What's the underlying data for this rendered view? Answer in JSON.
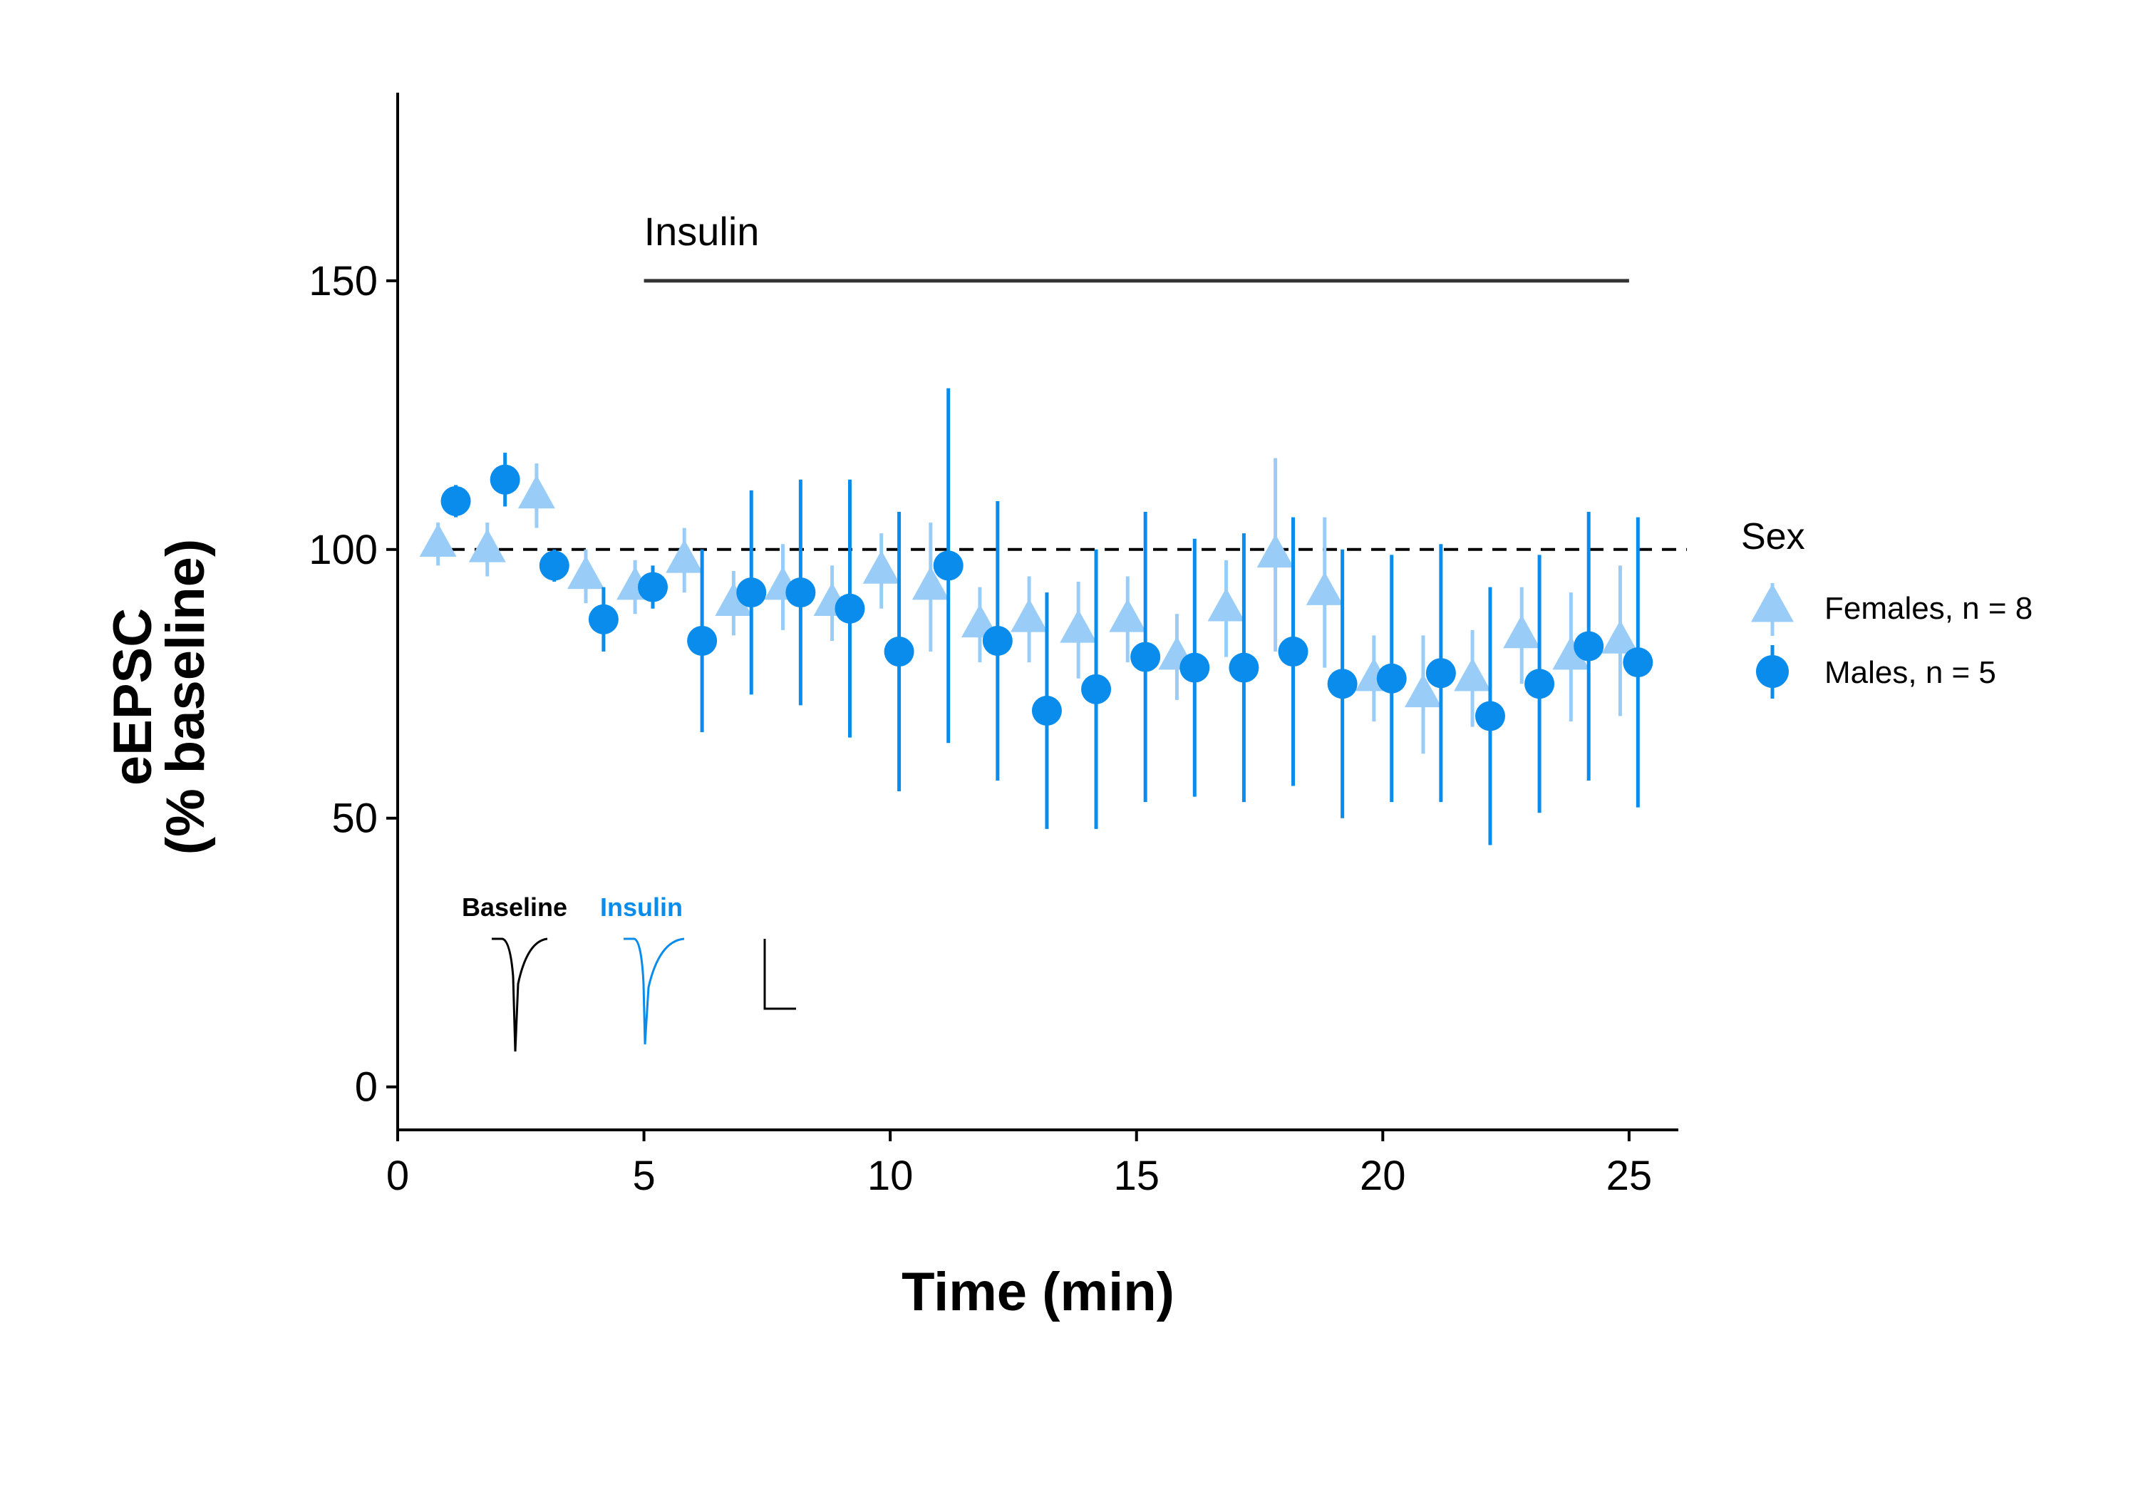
{
  "chart_data": {
    "type": "scatter",
    "xlabel": "Time (min)",
    "ylabel_line1": "eEPSC",
    "ylabel_line2": "(% baseline)",
    "xlim": [
      0,
      26
    ],
    "ylim": [
      -8,
      185
    ],
    "xticks": [
      0,
      5,
      10,
      15,
      20,
      25
    ],
    "yticks": [
      0,
      50,
      100,
      150
    ],
    "baseline_reference": 100,
    "treatment": {
      "label": "Insulin",
      "start": 5,
      "end": 25,
      "y": 150
    },
    "legend": {
      "title": "Sex",
      "position": "right"
    },
    "series": [
      {
        "name": "Females, n = 8",
        "marker": "triangle",
        "color": "#99cdf7",
        "x_offset": -0.18,
        "x": [
          1,
          2,
          3,
          4,
          5,
          6,
          7,
          8,
          9,
          10,
          11,
          12,
          13,
          14,
          15,
          16,
          17,
          18,
          19,
          20,
          21,
          22,
          23,
          24,
          25
        ],
        "y": [
          101,
          100,
          110,
          95,
          93,
          98,
          90,
          93,
          90,
          96,
          93,
          86,
          87,
          85,
          87,
          80,
          89,
          99,
          92,
          76,
          73,
          76,
          84,
          80,
          83
        ],
        "err": [
          4,
          5,
          6,
          5,
          5,
          6,
          6,
          8,
          7,
          7,
          12,
          7,
          8,
          9,
          8,
          8,
          9,
          18,
          14,
          8,
          11,
          9,
          9,
          12,
          14
        ]
      },
      {
        "name": "Males, n = 5",
        "marker": "circle",
        "color": "#0a8cec",
        "x_offset": 0.18,
        "x": [
          1,
          2,
          3,
          4,
          5,
          6,
          7,
          8,
          9,
          10,
          11,
          12,
          13,
          14,
          15,
          16,
          17,
          18,
          19,
          20,
          21,
          22,
          23,
          24,
          25
        ],
        "y": [
          109,
          113,
          97,
          87,
          93,
          83,
          92,
          92,
          89,
          81,
          97,
          83,
          70,
          74,
          80,
          78,
          78,
          81,
          75,
          76,
          77,
          69,
          75,
          82,
          79
        ],
        "err": [
          3,
          5,
          3,
          6,
          4,
          17,
          19,
          21,
          24,
          26,
          33,
          26,
          22,
          26,
          27,
          24,
          25,
          25,
          25,
          23,
          24,
          24,
          24,
          25,
          27
        ]
      }
    ],
    "inset": {
      "labels": [
        "Baseline",
        "Insulin"
      ],
      "colors": [
        "#000000",
        "#0a8cec"
      ]
    }
  }
}
